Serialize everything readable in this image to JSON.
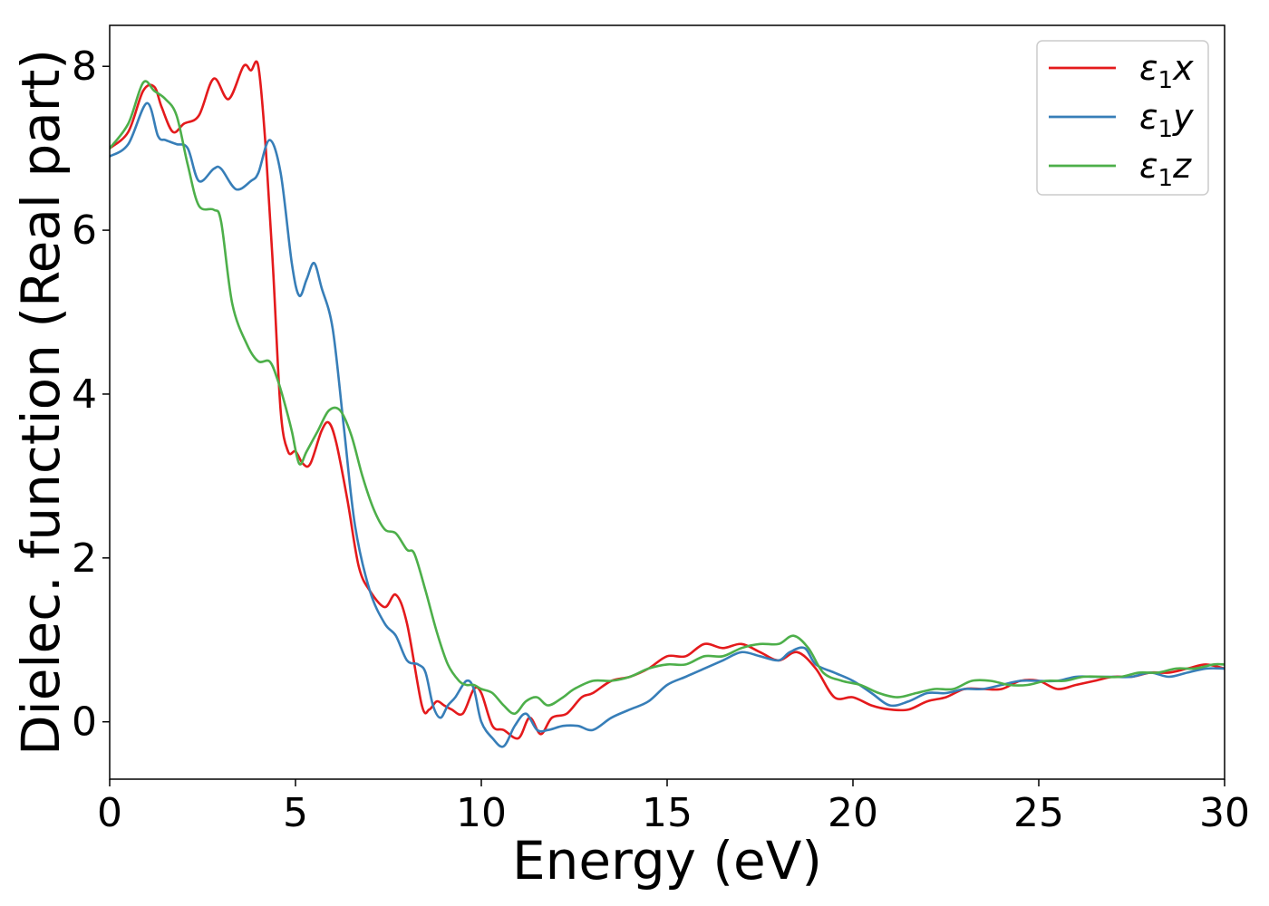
{
  "chart_data": {
    "type": "line",
    "xlabel": "Energy (eV)",
    "ylabel": "Dielec. function (Real part)",
    "xlim": [
      0,
      30
    ],
    "ylim": [
      -0.7,
      8.5
    ],
    "xticks": [
      0,
      5,
      10,
      15,
      20,
      25,
      30
    ],
    "yticks": [
      0,
      2,
      4,
      6,
      8
    ],
    "grid": false,
    "legend_position": "top-right",
    "series": [
      {
        "name": "ε1x",
        "legend_main": "ε",
        "legend_sub": "1",
        "legend_tail": "x",
        "color": "#e41a1c",
        "x": [
          0,
          0.5,
          0.9,
          1.2,
          1.4,
          1.7,
          2.0,
          2.4,
          2.8,
          3.2,
          3.6,
          3.8,
          4.0,
          4.2,
          4.4,
          4.6,
          4.8,
          5.0,
          5.2,
          5.4,
          5.7,
          5.9,
          6.1,
          6.4,
          6.7,
          7.0,
          7.4,
          7.7,
          8.0,
          8.4,
          8.6,
          8.8,
          9.0,
          9.2,
          9.5,
          9.8,
          10.0,
          10.3,
          10.6,
          11.0,
          11.3,
          11.6,
          11.9,
          12.3,
          12.7,
          13.0,
          13.5,
          14.0,
          14.5,
          15.0,
          15.5,
          16.0,
          16.5,
          17.0,
          17.5,
          18.0,
          18.5,
          19.0,
          19.5,
          20.0,
          20.5,
          21.0,
          21.5,
          22.0,
          22.5,
          23.0,
          23.5,
          24.0,
          24.5,
          25.0,
          25.5,
          26.0,
          26.5,
          27.0,
          27.5,
          28.0,
          28.5,
          29.0,
          29.5,
          30.0
        ],
        "y": [
          7.0,
          7.2,
          7.7,
          7.75,
          7.5,
          7.2,
          7.3,
          7.4,
          7.85,
          7.6,
          8.0,
          7.95,
          8.0,
          7.0,
          5.5,
          3.8,
          3.3,
          3.3,
          3.15,
          3.15,
          3.55,
          3.65,
          3.4,
          2.7,
          1.9,
          1.6,
          1.4,
          1.55,
          1.2,
          0.2,
          0.15,
          0.25,
          0.2,
          0.15,
          0.1,
          0.4,
          0.35,
          -0.05,
          -0.1,
          -0.2,
          0.05,
          -0.15,
          0.05,
          0.1,
          0.3,
          0.35,
          0.5,
          0.55,
          0.65,
          0.8,
          0.8,
          0.95,
          0.9,
          0.95,
          0.85,
          0.75,
          0.85,
          0.65,
          0.3,
          0.3,
          0.2,
          0.15,
          0.15,
          0.25,
          0.3,
          0.4,
          0.4,
          0.4,
          0.5,
          0.5,
          0.4,
          0.45,
          0.5,
          0.55,
          0.55,
          0.6,
          0.6,
          0.65,
          0.7,
          0.65
        ]
      },
      {
        "name": "ε1y",
        "legend_main": "ε",
        "legend_sub": "1",
        "legend_tail": "y",
        "color": "#377eb8",
        "x": [
          0,
          0.5,
          1.0,
          1.3,
          1.5,
          1.8,
          2.1,
          2.4,
          2.8,
          3.0,
          3.4,
          3.8,
          4.0,
          4.3,
          4.6,
          4.9,
          5.1,
          5.3,
          5.5,
          5.7,
          6.0,
          6.3,
          6.6,
          7.0,
          7.4,
          7.7,
          8.0,
          8.3,
          8.5,
          8.7,
          8.9,
          9.1,
          9.3,
          9.6,
          9.8,
          10.0,
          10.3,
          10.6,
          10.9,
          11.2,
          11.5,
          11.8,
          12.2,
          12.6,
          13.0,
          13.5,
          14.0,
          14.5,
          15.0,
          15.5,
          16.0,
          16.5,
          17.0,
          17.5,
          18.0,
          18.3,
          18.7,
          19.0,
          19.5,
          20.0,
          20.5,
          21.0,
          21.5,
          22.0,
          22.5,
          23.0,
          23.5,
          24.0,
          24.5,
          25.0,
          25.5,
          26.0,
          26.5,
          27.0,
          27.5,
          28.0,
          28.5,
          29.0,
          29.5,
          30.0
        ],
        "y": [
          6.9,
          7.05,
          7.55,
          7.15,
          7.1,
          7.05,
          7.0,
          6.6,
          6.75,
          6.75,
          6.5,
          6.6,
          6.7,
          7.1,
          6.7,
          5.6,
          5.2,
          5.4,
          5.6,
          5.3,
          4.8,
          3.6,
          2.4,
          1.6,
          1.2,
          1.05,
          0.75,
          0.7,
          0.6,
          0.2,
          0.05,
          0.2,
          0.3,
          0.5,
          0.4,
          0.0,
          -0.2,
          -0.3,
          -0.05,
          0.1,
          -0.1,
          -0.1,
          -0.05,
          -0.05,
          -0.1,
          0.05,
          0.15,
          0.25,
          0.45,
          0.55,
          0.65,
          0.75,
          0.85,
          0.8,
          0.75,
          0.85,
          0.9,
          0.7,
          0.6,
          0.5,
          0.35,
          0.2,
          0.25,
          0.35,
          0.35,
          0.4,
          0.4,
          0.45,
          0.5,
          0.5,
          0.5,
          0.55,
          0.55,
          0.55,
          0.55,
          0.6,
          0.55,
          0.6,
          0.65,
          0.65
        ]
      },
      {
        "name": "ε1z",
        "legend_main": "ε",
        "legend_sub": "1",
        "legend_tail": "z",
        "color": "#4daf4a",
        "x": [
          0,
          0.5,
          0.9,
          1.2,
          1.5,
          1.8,
          2.1,
          2.4,
          2.8,
          3.0,
          3.3,
          3.7,
          4.0,
          4.3,
          4.5,
          4.7,
          4.9,
          5.1,
          5.3,
          5.6,
          5.9,
          6.2,
          6.5,
          6.8,
          7.1,
          7.4,
          7.7,
          8.0,
          8.2,
          8.5,
          8.8,
          9.1,
          9.4,
          9.6,
          9.8,
          10.0,
          10.3,
          10.6,
          10.9,
          11.2,
          11.5,
          11.8,
          12.2,
          12.5,
          13.0,
          13.5,
          14.0,
          14.5,
          15.0,
          15.5,
          16.0,
          16.5,
          17.0,
          17.5,
          18.0,
          18.4,
          18.8,
          19.2,
          19.7,
          20.2,
          20.7,
          21.2,
          21.7,
          22.2,
          22.7,
          23.2,
          23.7,
          24.2,
          24.7,
          25.2,
          25.7,
          26.2,
          26.7,
          27.2,
          27.7,
          28.2,
          28.7,
          29.2,
          29.7,
          30.0
        ],
        "y": [
          7.0,
          7.3,
          7.8,
          7.7,
          7.6,
          7.4,
          6.8,
          6.3,
          6.25,
          6.1,
          5.1,
          4.6,
          4.4,
          4.4,
          4.2,
          3.9,
          3.55,
          3.15,
          3.3,
          3.55,
          3.8,
          3.8,
          3.5,
          3.0,
          2.6,
          2.35,
          2.3,
          2.1,
          2.05,
          1.6,
          1.1,
          0.7,
          0.5,
          0.45,
          0.45,
          0.4,
          0.35,
          0.2,
          0.1,
          0.25,
          0.3,
          0.2,
          0.3,
          0.4,
          0.5,
          0.5,
          0.55,
          0.65,
          0.7,
          0.7,
          0.8,
          0.8,
          0.9,
          0.95,
          0.95,
          1.05,
          0.9,
          0.6,
          0.5,
          0.45,
          0.35,
          0.3,
          0.35,
          0.4,
          0.4,
          0.5,
          0.5,
          0.45,
          0.45,
          0.5,
          0.5,
          0.55,
          0.55,
          0.55,
          0.6,
          0.6,
          0.65,
          0.65,
          0.7,
          0.7
        ]
      }
    ]
  }
}
